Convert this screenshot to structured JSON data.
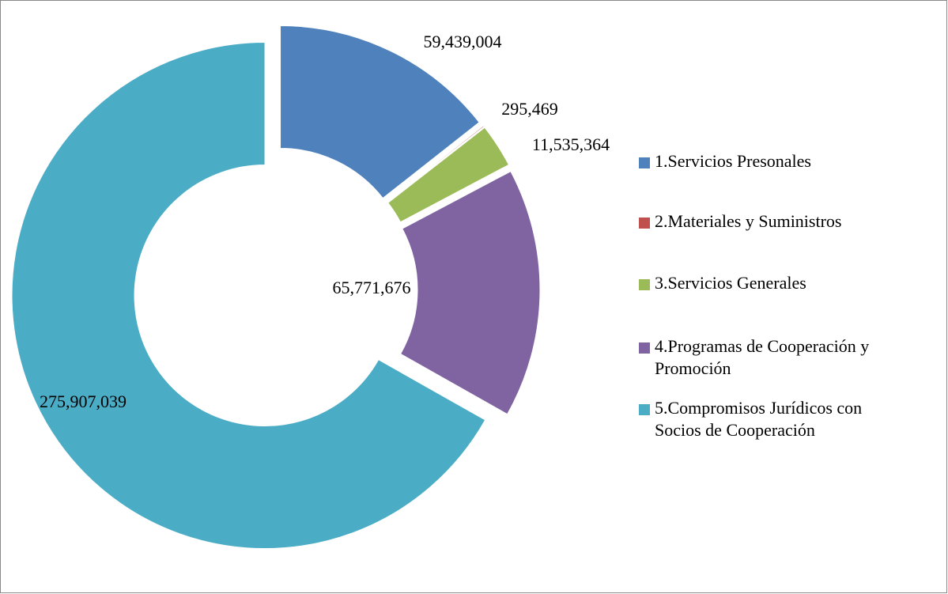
{
  "chart_data": {
    "type": "donut",
    "categories": [
      "1.Servicios Presonales",
      "2.Materiales y Suministros",
      "3.Servicios Generales",
      "4.Programas de Cooperación y Promoción",
      "5.Compromisos Jurídicos con Socios de Cooperación"
    ],
    "values": [
      59439004,
      295469,
      11535364,
      65771676,
      275907039
    ],
    "value_labels": [
      "59,439,004",
      "295,469",
      "11,535,364",
      "65,771,676",
      "275,907,039"
    ],
    "colors": [
      "#4f81bd",
      "#c0504d",
      "#9bbb59",
      "#8064a2",
      "#4bacc6"
    ],
    "legend": "right"
  }
}
